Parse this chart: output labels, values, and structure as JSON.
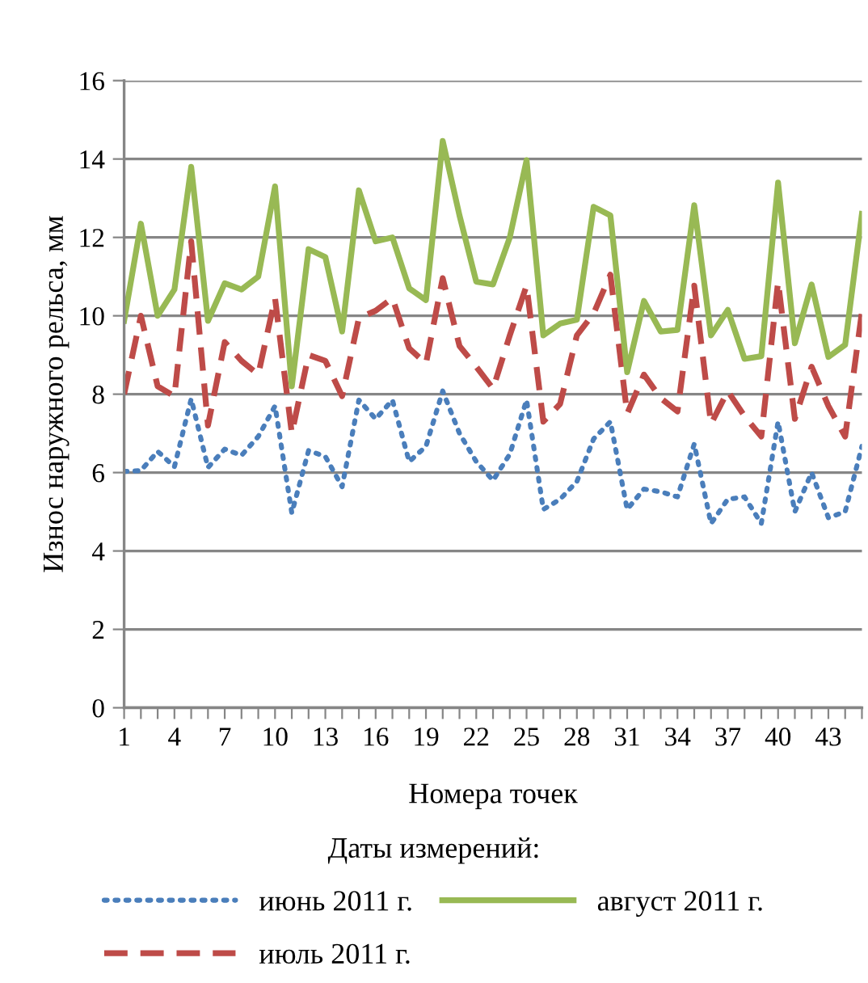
{
  "chart_data": {
    "type": "line",
    "xlabel": "Номера точек",
    "ylabel": "Износ наружного рельса, мм",
    "legend_title": "Даты измерений:",
    "categories": [
      "1",
      null,
      null,
      "4",
      null,
      null,
      "7",
      null,
      null,
      "10",
      null,
      null,
      "13",
      null,
      null,
      "16",
      null,
      null,
      "19",
      null,
      null,
      "22",
      null,
      null,
      "25",
      null,
      null,
      "28",
      null,
      null,
      "31",
      null,
      null,
      "34",
      null,
      null,
      "37",
      null,
      null,
      "40",
      null,
      null,
      "43",
      null,
      null
    ],
    "series": [
      {
        "name": "июнь 2011 г.",
        "color": "#4a7ebb",
        "line_style": "dotted",
        "values": [
          6.03,
          6.05,
          6.54,
          6.15,
          7.88,
          6.13,
          6.6,
          6.44,
          6.92,
          7.7,
          4.97,
          6.56,
          6.41,
          5.64,
          7.85,
          7.37,
          7.85,
          6.28,
          6.67,
          8.08,
          7.0,
          6.28,
          5.8,
          6.47,
          7.85,
          5.06,
          5.32,
          5.77,
          6.86,
          7.3,
          5.06,
          5.58,
          5.51,
          5.38,
          6.73,
          4.7,
          5.32,
          5.38,
          4.7,
          7.3,
          5.0,
          6.0,
          4.85,
          5.0,
          6.67
        ]
      },
      {
        "name": "июль 2011 г.",
        "color": "#be4b48",
        "line_style": "dashed",
        "values": [
          8.0,
          10.0,
          8.2,
          7.95,
          11.9,
          7.2,
          9.33,
          8.85,
          8.5,
          10.45,
          7.0,
          9.0,
          8.85,
          7.95,
          9.94,
          10.13,
          10.45,
          9.17,
          8.78,
          10.96,
          9.23,
          8.7,
          8.14,
          9.5,
          10.77,
          7.3,
          7.75,
          9.5,
          10.06,
          11.05,
          7.5,
          8.5,
          7.9,
          7.56,
          10.77,
          7.24,
          8.08,
          7.44,
          6.92,
          10.87,
          7.37,
          8.7,
          7.7,
          6.92,
          10.1
        ]
      },
      {
        "name": "август 2011 г.",
        "color": "#98b954",
        "line_style": "solid",
        "values": [
          9.87,
          12.35,
          10.0,
          10.67,
          13.8,
          9.87,
          10.83,
          10.67,
          11.0,
          13.3,
          8.2,
          11.7,
          11.5,
          9.6,
          13.2,
          11.9,
          12.0,
          10.7,
          10.4,
          14.46,
          12.56,
          10.87,
          10.8,
          12.0,
          13.97,
          9.5,
          9.8,
          9.9,
          12.78,
          12.56,
          8.56,
          10.38,
          9.6,
          9.64,
          12.82,
          9.5,
          10.15,
          8.9,
          8.97,
          13.4,
          9.3,
          10.8,
          8.95,
          9.26,
          12.6
        ]
      }
    ],
    "ylim": [
      0,
      16
    ],
    "yticks": [
      0,
      2,
      4,
      6,
      8,
      10,
      12,
      14,
      16
    ],
    "grid": "y",
    "legend": "bottom",
    "marker": "none"
  }
}
